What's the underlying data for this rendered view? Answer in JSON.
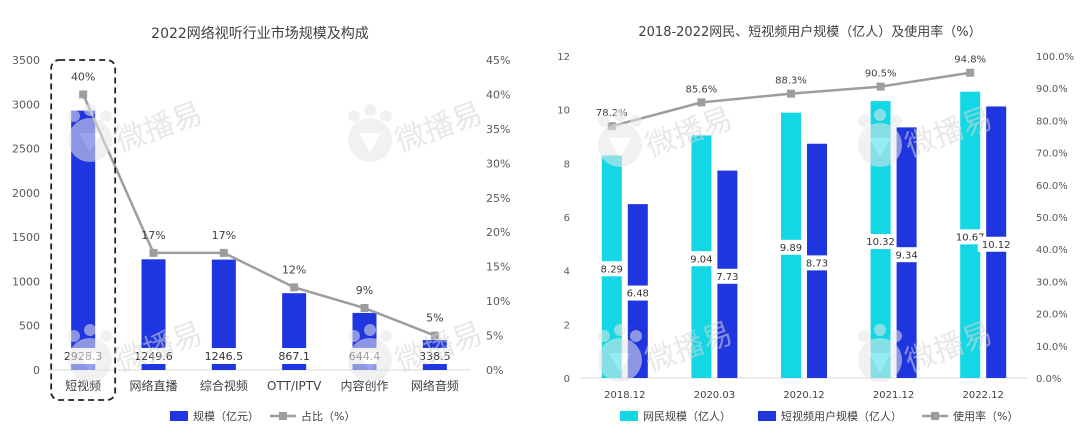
{
  "watermark": "微播易",
  "chart_data": [
    {
      "type": "bar",
      "title": "2022网络视听行业市场规模及构成",
      "categories": [
        "短视频",
        "网络直播",
        "综合视频",
        "OTT/IPTV",
        "内容创作",
        "网络音频"
      ],
      "series": [
        {
          "name": "规模（亿元）",
          "kind": "bar",
          "color": "#1f35e0",
          "values": [
            2928.3,
            1249.6,
            1246.5,
            867.1,
            644.4,
            338.5
          ]
        },
        {
          "name": "占比（%）",
          "kind": "line",
          "color": "#9d9d9d",
          "values": [
            40,
            17,
            17,
            12,
            9,
            5
          ],
          "labels": [
            "40%",
            "17%",
            "17%",
            "12%",
            "9%",
            "5%"
          ]
        }
      ],
      "value_labels": [
        "2928.3",
        "1249.6",
        "1246.5",
        "867.1",
        "644.4",
        "338.5"
      ],
      "y_left": {
        "range": [
          0,
          3500
        ],
        "ticks": [
          "0",
          "500",
          "1000",
          "1500",
          "2000",
          "2500",
          "3000",
          "3500"
        ]
      },
      "y_right": {
        "range": [
          0,
          45
        ],
        "ticks": [
          "0%",
          "5%",
          "10%",
          "15%",
          "20%",
          "25%",
          "30%",
          "35%",
          "40%",
          "45%"
        ]
      },
      "highlight_category": "短视频",
      "legend": [
        "规模（亿元）",
        "占比（%）"
      ]
    },
    {
      "type": "bar",
      "title": "2018-2022网民、短视频用户规模（亿人）及使用率（%）",
      "categories": [
        "2018.12",
        "2020.03",
        "2020.12",
        "2021.12",
        "2022.12"
      ],
      "series": [
        {
          "name": "网民规模（亿人）",
          "kind": "bar",
          "color": "#14d7e6",
          "values": [
            8.29,
            9.04,
            9.89,
            10.32,
            10.67
          ],
          "labels": [
            "8.29",
            "9.04",
            "9.89",
            "10.32",
            "10.67"
          ]
        },
        {
          "name": "短视频用户规模（亿人）",
          "kind": "bar",
          "color": "#1f35e0",
          "values": [
            6.48,
            7.73,
            8.73,
            9.34,
            10.12
          ],
          "labels": [
            "6.48",
            "7.73",
            "8.73",
            "9.34",
            "10.12"
          ]
        },
        {
          "name": "使用率（%）",
          "kind": "line",
          "color": "#9d9d9d",
          "values": [
            78.2,
            85.6,
            88.3,
            90.5,
            94.8
          ],
          "labels": [
            "78.2%",
            "85.6%",
            "88.3%",
            "90.5%",
            "94.8%"
          ]
        }
      ],
      "y_left": {
        "range": [
          0,
          12
        ],
        "ticks": [
          "0",
          "2",
          "4",
          "6",
          "8",
          "10",
          "12"
        ]
      },
      "y_right": {
        "range": [
          0,
          100
        ],
        "ticks": [
          "0.0%",
          "10.0%",
          "20.0%",
          "30.0%",
          "40.0%",
          "50.0%",
          "60.0%",
          "70.0%",
          "80.0%",
          "90.0%",
          "100.0%"
        ]
      },
      "legend": [
        "网民规模（亿人）",
        "短视频用户规模（亿人）",
        "使用率（%）"
      ]
    }
  ]
}
